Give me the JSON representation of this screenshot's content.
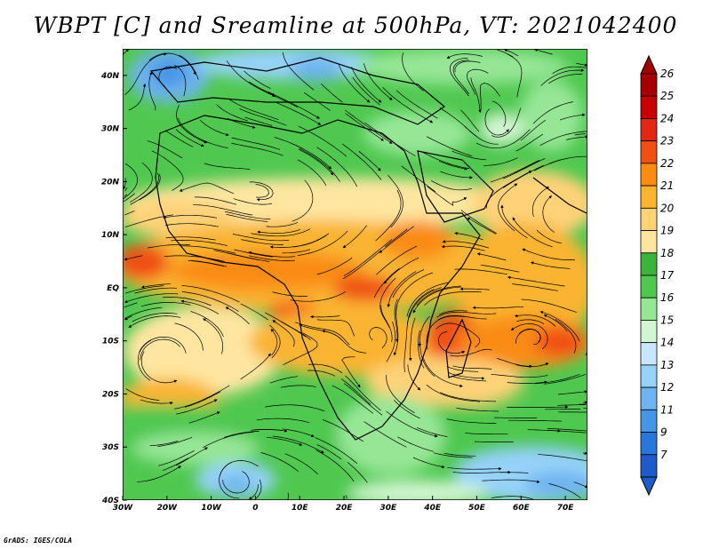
{
  "title": "WBPT [C] and Sreamline at 500hPa, VT: 2021042400",
  "credit": "GrADS: IGES/COLA",
  "map": {
    "lon_range": [
      -30,
      75
    ],
    "lat_range": [
      -40,
      45
    ],
    "x_ticks": [
      {
        "lon": -30,
        "label": "30W"
      },
      {
        "lon": -20,
        "label": "20W"
      },
      {
        "lon": -10,
        "label": "10W"
      },
      {
        "lon": 0,
        "label": "0"
      },
      {
        "lon": 10,
        "label": "10E"
      },
      {
        "lon": 20,
        "label": "20E"
      },
      {
        "lon": 30,
        "label": "30E"
      },
      {
        "lon": 40,
        "label": "40E"
      },
      {
        "lon": 50,
        "label": "50E"
      },
      {
        "lon": 60,
        "label": "60E"
      },
      {
        "lon": 70,
        "label": "70E"
      }
    ],
    "y_ticks": [
      {
        "lat": 40,
        "label": "40N"
      },
      {
        "lat": 30,
        "label": "30N"
      },
      {
        "lat": 20,
        "label": "20N"
      },
      {
        "lat": 10,
        "label": "10N"
      },
      {
        "lat": 0,
        "label": "EQ"
      },
      {
        "lat": -10,
        "label": "10S"
      },
      {
        "lat": -20,
        "label": "20S"
      },
      {
        "lat": -30,
        "label": "30S"
      },
      {
        "lat": -40,
        "label": "40S"
      }
    ]
  },
  "colorbar": {
    "levels": [
      {
        "label": "26",
        "color": "#a50000"
      },
      {
        "label": "25",
        "color": "#c80000"
      },
      {
        "label": "24",
        "color": "#e12814"
      },
      {
        "label": "23",
        "color": "#f05014"
      },
      {
        "label": "22",
        "color": "#fa8c14"
      },
      {
        "label": "21",
        "color": "#fab432"
      },
      {
        "label": "20",
        "color": "#ffd278"
      },
      {
        "label": "19",
        "color": "#ffe6a0"
      },
      {
        "label": "18",
        "color": "#3cb43c"
      },
      {
        "label": "17",
        "color": "#50c850"
      },
      {
        "label": "16",
        "color": "#96e696"
      },
      {
        "label": "15",
        "color": "#d2f5d2"
      },
      {
        "label": "14",
        "color": "#c8e6ff"
      },
      {
        "label": "13",
        "color": "#96d2fa"
      },
      {
        "label": "12",
        "color": "#6eb4f0"
      },
      {
        "label": "11",
        "color": "#4696e6"
      },
      {
        "label": "9",
        "color": "#2878dc"
      },
      {
        "label": "7",
        "color": "#1e5ac8"
      }
    ]
  }
}
